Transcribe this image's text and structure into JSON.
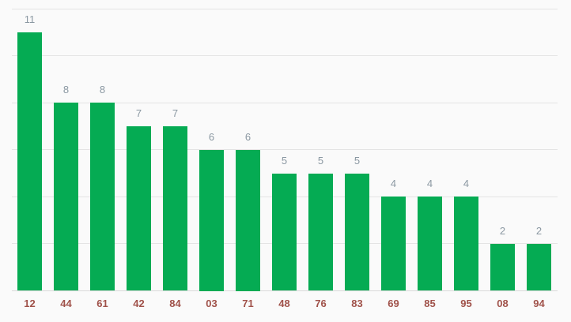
{
  "chart": {
    "background_color": "#fafafa",
    "bar_color": "#05ab53",
    "annotation_color": "#8b98a2",
    "axis_label_color": "#a0524a",
    "gridline_color": "#e4e4e4",
    "baseline_color": "#d9d9d9"
  },
  "chart_data": {
    "type": "bar",
    "title": "",
    "xlabel": "",
    "ylabel": "",
    "categories": [
      "12",
      "44",
      "61",
      "42",
      "84",
      "03",
      "71",
      "48",
      "76",
      "83",
      "69",
      "85",
      "95",
      "08",
      "94"
    ],
    "values": [
      11,
      8,
      8,
      7,
      7,
      6,
      6,
      5,
      5,
      5,
      4,
      4,
      4,
      2,
      2
    ],
    "annotations": [
      11,
      8,
      8,
      7,
      7,
      6,
      6,
      5,
      5,
      5,
      4,
      4,
      4,
      2,
      2
    ],
    "ylim": [
      0,
      12
    ],
    "gridline_step": 2,
    "grid": true,
    "legend": "none",
    "y_axis_tick_labels_visible": false
  }
}
